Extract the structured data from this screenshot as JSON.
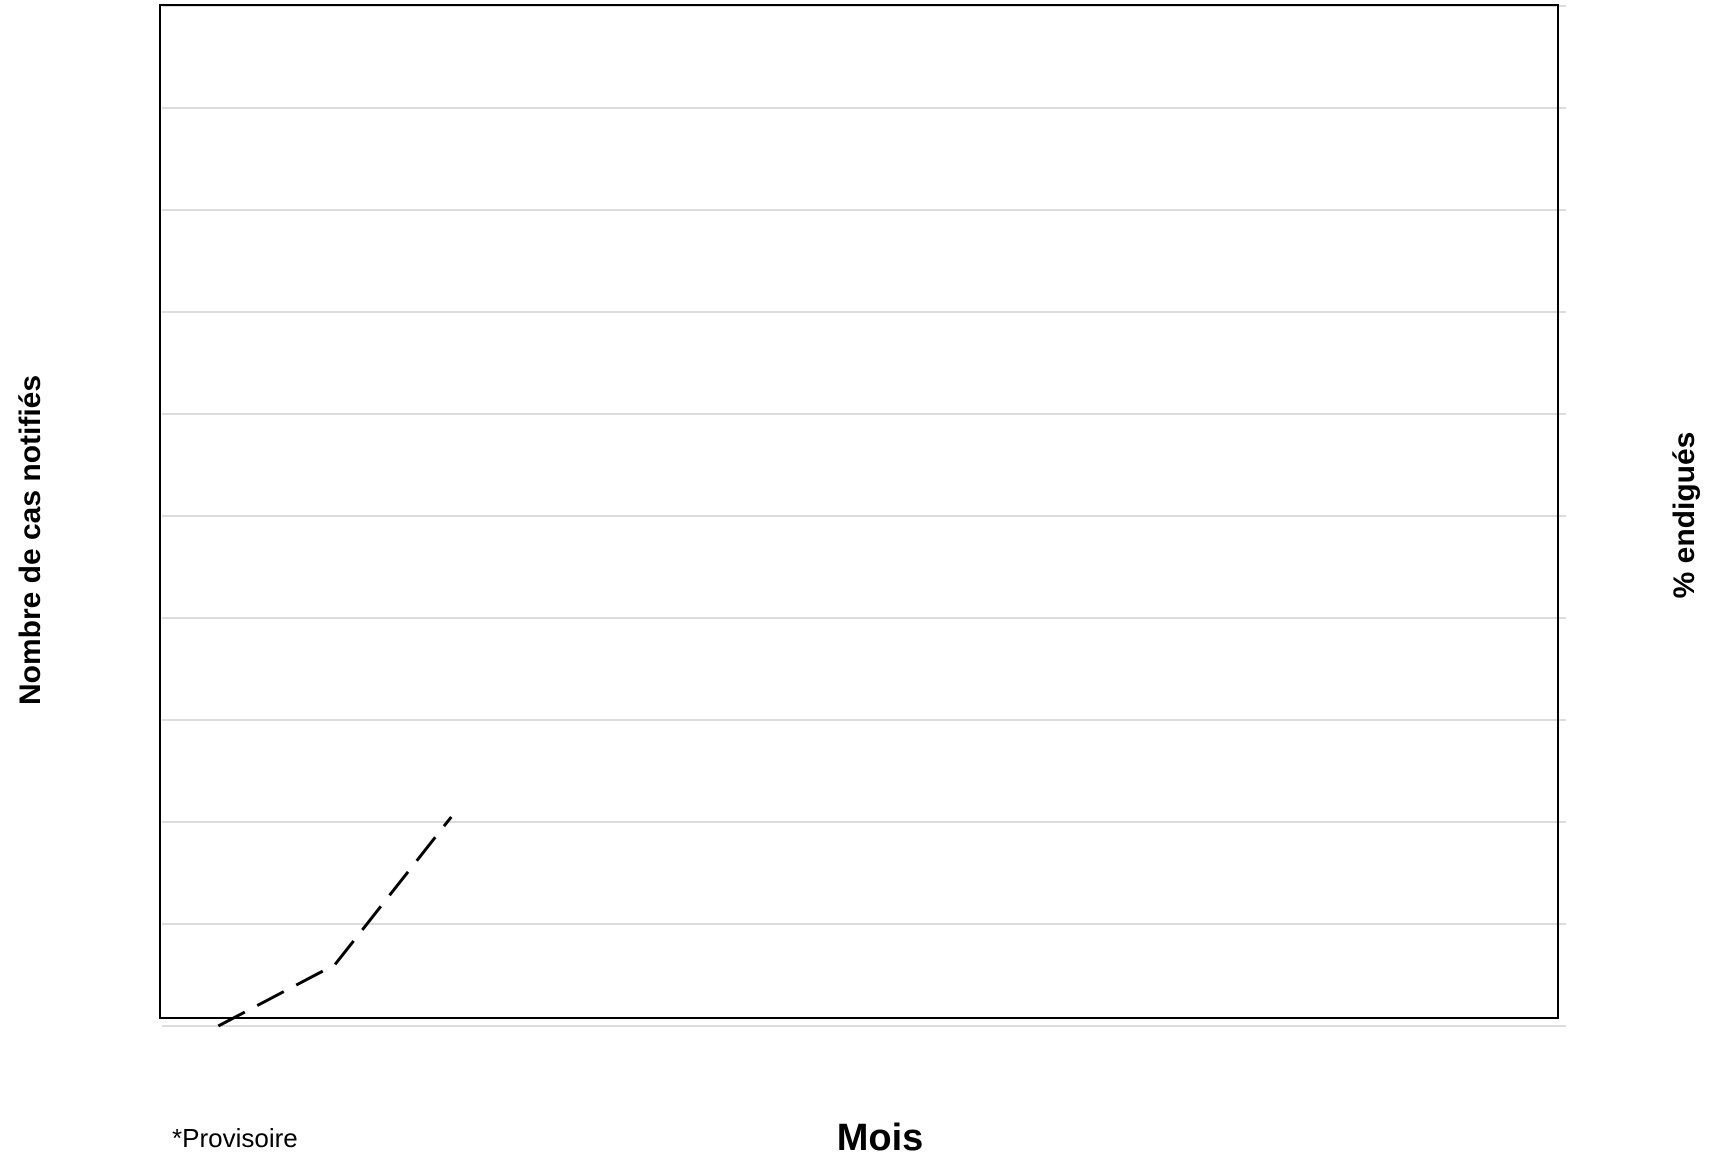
{
  "chart_data": {
    "type": "line",
    "title": "",
    "xlabel": "Mois",
    "ylabel": "Nombre de cas notifiés",
    "y2label": "% endigués",
    "note": "*Provisoire",
    "grid": true,
    "ylim": [
      0,
      10
    ],
    "xlim": [
      0,
      12
    ],
    "series": [
      {
        "style": "dashed",
        "color": "#000000",
        "points": [
          {
            "x": 0.5,
            "y": 0.0
          },
          {
            "x": 1.5,
            "y": 0.6
          },
          {
            "x": 2.5,
            "y": 2.05
          }
        ]
      }
    ]
  }
}
